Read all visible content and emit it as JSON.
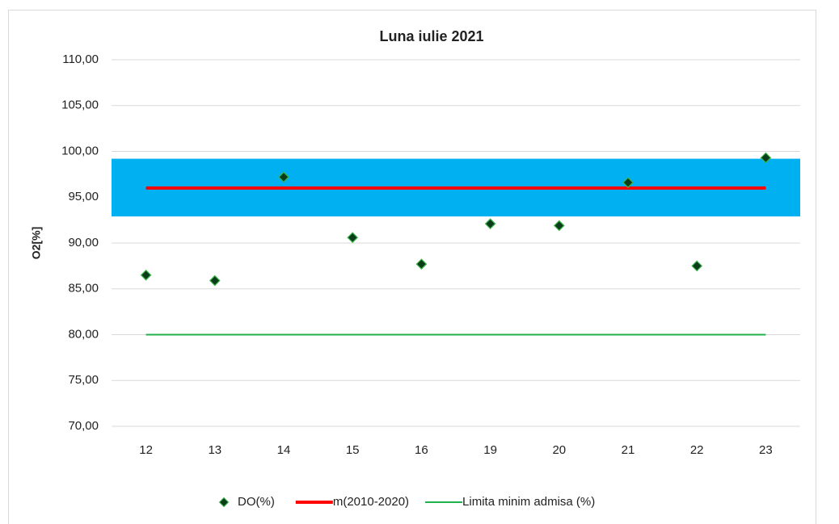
{
  "chart_data": {
    "type": "line",
    "title": "Luna iulie  2021",
    "y_label": "O2[%]",
    "categories": [
      "12",
      "13",
      "14",
      "15",
      "16",
      "19",
      "20",
      "21",
      "22",
      "23"
    ],
    "band": {
      "from": 92.9,
      "to": 99.2,
      "color": "#00b0f0"
    },
    "series": [
      {
        "name": "DO(%)",
        "color": "#0b3d1a",
        "edge": "#3cb44b",
        "mode": "markers",
        "values": [
          86.5,
          85.9,
          97.2,
          90.6,
          87.7,
          92.1,
          91.9,
          96.6,
          87.5,
          99.3
        ]
      },
      {
        "name": "m(2010-2020)",
        "color": "#ff0000",
        "mode": "line",
        "width": 4,
        "values": [
          96,
          96,
          96,
          96,
          96,
          96,
          96,
          96,
          96,
          96
        ]
      },
      {
        "name": "Limita minim admisa (%)",
        "color": "#22b14c",
        "mode": "line",
        "width": 2,
        "values": [
          80,
          80,
          80,
          80,
          80,
          80,
          80,
          80,
          80,
          80
        ]
      }
    ],
    "ylim": [
      70,
      110
    ],
    "yticks": [
      {
        "value": 70,
        "label": "70,00"
      },
      {
        "value": 75,
        "label": "75,00"
      },
      {
        "value": 80,
        "label": "80,00"
      },
      {
        "value": 85,
        "label": "85,00"
      },
      {
        "value": 90,
        "label": "90,00"
      },
      {
        "value": 95,
        "label": "95,00"
      },
      {
        "value": 100,
        "label": "100,00"
      },
      {
        "value": 105,
        "label": "105,00"
      },
      {
        "value": 110,
        "label": "110,00"
      }
    ],
    "grid": true,
    "legend": "bottom"
  }
}
